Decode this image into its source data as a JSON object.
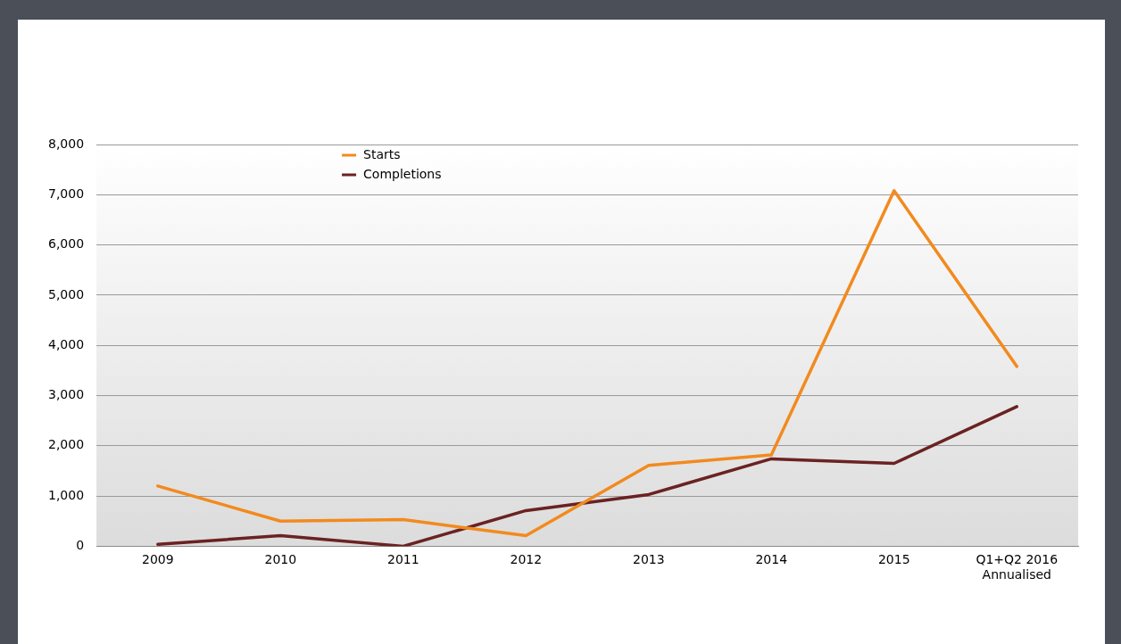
{
  "chart_data": {
    "type": "line",
    "categories": [
      "2009",
      "2010",
      "2011",
      "2012",
      "2013",
      "2014",
      "2015",
      "Q1+Q2 2016 Annualised"
    ],
    "series": [
      {
        "name": "Starts",
        "color": "#f28a1e",
        "values": [
          1200,
          500,
          530,
          210,
          1610,
          1820,
          7080,
          3580
        ]
      },
      {
        "name": "Completions",
        "color": "#6b2222",
        "values": [
          40,
          210,
          0,
          710,
          1030,
          1740,
          1650,
          2780
        ]
      }
    ],
    "ylim": [
      0,
      8000
    ],
    "yticks": [
      {
        "value": 0,
        "label": "0"
      },
      {
        "value": 1000,
        "label": "1,000"
      },
      {
        "value": 2000,
        "label": "2,000"
      },
      {
        "value": 3000,
        "label": "3,000"
      },
      {
        "value": 4000,
        "label": "4,000"
      },
      {
        "value": 5000,
        "label": "5,000"
      },
      {
        "value": 6000,
        "label": "6,000"
      },
      {
        "value": 7000,
        "label": "7,000"
      },
      {
        "value": 8000,
        "label": "8,000"
      }
    ],
    "grid": "y",
    "legend": "top left",
    "marker": "none",
    "line_style": "solid"
  }
}
